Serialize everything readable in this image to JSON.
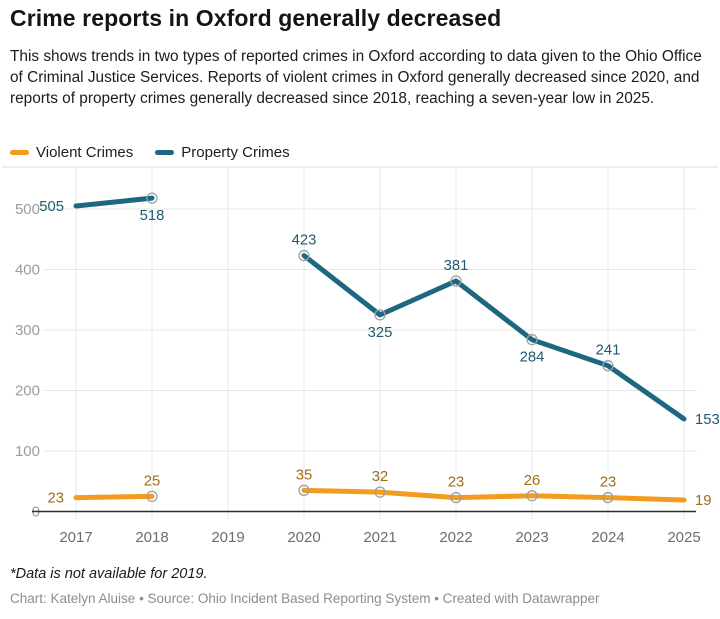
{
  "header": {
    "title": "Crime reports in Oxford generally decreased",
    "description": "This shows trends in two types of reported crimes in Oxford according to data given to the Ohio Office of Criminal Justice Services. Reports of violent crimes in Oxford generally decreased since 2020, and reports of property crimes generally decreased since 2018, reaching a seven-year low in 2025."
  },
  "legend": {
    "items": [
      {
        "label": "Violent Crimes",
        "color": "#f29c1d"
      },
      {
        "label": "Property Crimes",
        "color": "#1d6880"
      }
    ]
  },
  "chart_data": {
    "type": "line",
    "x": [
      2017,
      2018,
      2019,
      2020,
      2021,
      2022,
      2023,
      2024,
      2025
    ],
    "series": [
      {
        "name": "Violent Crimes",
        "color": "#f29c1d",
        "label_color": "#a06c1c",
        "values": [
          23,
          25,
          null,
          35,
          32,
          23,
          26,
          23,
          19
        ],
        "label_pos": [
          "left",
          "above",
          null,
          "above",
          "above",
          "above",
          "above",
          "above",
          "right"
        ]
      },
      {
        "name": "Property Crimes",
        "color": "#1d6880",
        "label_color": "#1e5b72",
        "values": [
          505,
          518,
          null,
          423,
          325,
          381,
          284,
          241,
          153
        ],
        "label_pos": [
          "left",
          "below",
          null,
          "above",
          "below",
          "above",
          "below",
          "above",
          "right"
        ]
      }
    ],
    "title": "Crime reports in Oxford generally decreased",
    "xlabel": "",
    "ylabel": "",
    "ylim": [
      0,
      550
    ],
    "ytick_step": 100,
    "yticks": [
      0,
      100,
      200,
      300,
      400,
      500
    ],
    "grid": true,
    "legend_position": "top-left",
    "missing_data_note": "2019 has no data (line gap between 2018 and 2020)"
  },
  "footer": {
    "footnote": "*Data is not available for 2019.",
    "credit": "Chart: Katelyn Aluise • Source: Ohio Incident Based Reporting System • Created with Datawrapper"
  },
  "colors": {
    "grid": "#e7e7e7",
    "top_border": "#dcdcdc",
    "baseline": "#2f2f2f",
    "y_tick_label": "#9c9c9c",
    "x_tick_label": "#6e6e6e",
    "marker_ring": "#9ba1a6",
    "background": "#ffffff"
  }
}
